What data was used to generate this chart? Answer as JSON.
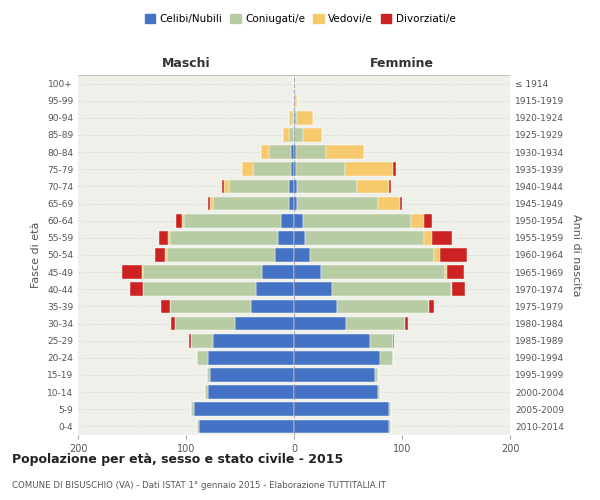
{
  "age_groups": [
    "0-4",
    "5-9",
    "10-14",
    "15-19",
    "20-24",
    "25-29",
    "30-34",
    "35-39",
    "40-44",
    "45-49",
    "50-54",
    "55-59",
    "60-64",
    "65-69",
    "70-74",
    "75-79",
    "80-84",
    "85-89",
    "90-94",
    "95-99",
    "100+"
  ],
  "birth_years": [
    "2010-2014",
    "2005-2009",
    "2000-2004",
    "1995-1999",
    "1990-1994",
    "1985-1989",
    "1980-1984",
    "1975-1979",
    "1970-1974",
    "1965-1969",
    "1960-1964",
    "1955-1959",
    "1950-1954",
    "1945-1949",
    "1940-1944",
    "1935-1939",
    "1930-1934",
    "1925-1929",
    "1920-1924",
    "1915-1919",
    "≤ 1914"
  ],
  "colors": {
    "celibi": "#4472c4",
    "coniugati": "#b8cca4",
    "vedovi": "#f5c96c",
    "divorziati": "#cc2222"
  },
  "maschi": {
    "celibi": [
      88,
      93,
      80,
      78,
      80,
      75,
      55,
      40,
      35,
      30,
      18,
      15,
      12,
      5,
      5,
      3,
      3,
      0,
      0,
      0,
      0
    ],
    "coniugati": [
      2,
      2,
      2,
      3,
      10,
      20,
      55,
      75,
      105,
      110,
      100,
      100,
      90,
      70,
      55,
      35,
      20,
      5,
      2,
      0,
      0
    ],
    "vedovi": [
      0,
      0,
      0,
      0,
      0,
      0,
      0,
      0,
      0,
      1,
      1,
      2,
      2,
      3,
      5,
      10,
      8,
      5,
      3,
      1,
      0
    ],
    "divorziati": [
      0,
      0,
      0,
      0,
      0,
      2,
      4,
      8,
      12,
      18,
      10,
      8,
      5,
      2,
      2,
      0,
      0,
      0,
      0,
      0,
      0
    ]
  },
  "femmine": {
    "celibi": [
      88,
      88,
      78,
      75,
      80,
      70,
      48,
      40,
      35,
      25,
      15,
      10,
      8,
      3,
      3,
      2,
      2,
      0,
      0,
      0,
      0
    ],
    "coniugati": [
      2,
      2,
      2,
      3,
      12,
      22,
      55,
      85,
      110,
      115,
      115,
      110,
      100,
      75,
      55,
      45,
      28,
      8,
      3,
      1,
      0
    ],
    "vedovi": [
      0,
      0,
      0,
      0,
      0,
      0,
      0,
      0,
      1,
      2,
      5,
      8,
      12,
      20,
      30,
      45,
      35,
      18,
      15,
      2,
      1
    ],
    "divorziati": [
      0,
      0,
      0,
      0,
      0,
      1,
      3,
      5,
      12,
      15,
      25,
      18,
      8,
      2,
      2,
      2,
      0,
      0,
      0,
      0,
      0
    ]
  },
  "xlim": 200,
  "title": "Popolazione per età, sesso e stato civile - 2015",
  "subtitle": "COMUNE DI BISUSCHIO (VA) - Dati ISTAT 1° gennaio 2015 - Elaborazione TUTTITALIA.IT",
  "xlabel_left": "Maschi",
  "xlabel_right": "Femmine",
  "ylabel_left": "Fasce di età",
  "ylabel_right": "Anni di nascita",
  "bg_color": "#f0f0eb",
  "legend_labels": [
    "Celibi/Nubili",
    "Coniugati/e",
    "Vedovi/e",
    "Divorziati/e"
  ]
}
